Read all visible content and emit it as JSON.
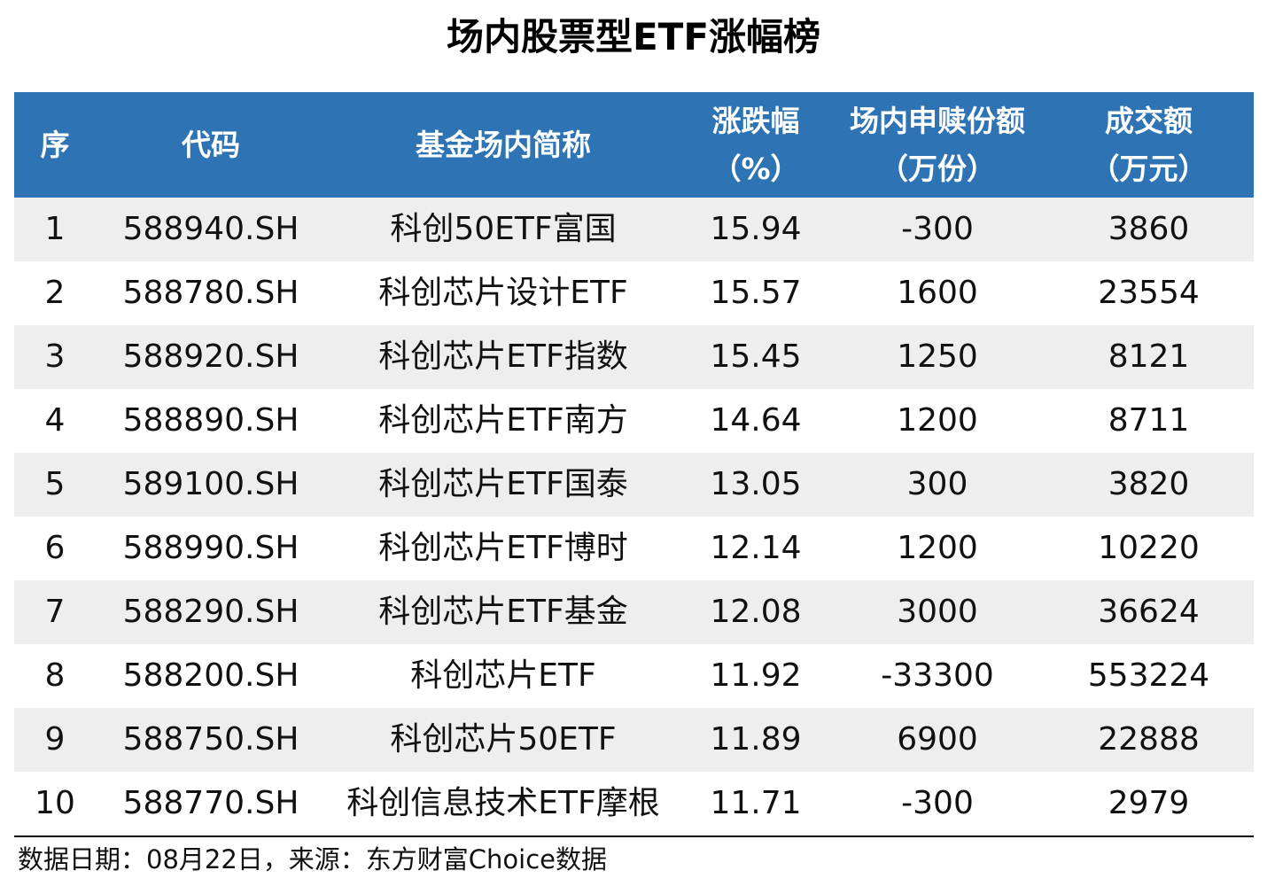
{
  "title": "场内股票型ETF涨幅榜",
  "columns": {
    "rank": [
      "序"
    ],
    "code": [
      "代码"
    ],
    "name": [
      "基金场内简称"
    ],
    "change": [
      "涨跌幅",
      "（%）"
    ],
    "shares": [
      "场内申赎份额",
      "（万份）"
    ],
    "turnover": [
      "成交额",
      "（万元）"
    ]
  },
  "colors": {
    "header_bg": "#2e74b5",
    "header_text": "#ffffff",
    "shade_row": "#eeeeee"
  },
  "chart_data": {
    "type": "table",
    "title": "场内股票型ETF涨幅榜",
    "headers": [
      "序",
      "代码",
      "基金场内简称",
      "涨跌幅（%）",
      "场内申赎份额（万份）",
      "成交额（万元）"
    ],
    "rows": [
      [
        "1",
        "588940.SH",
        "科创50ETF富国",
        "15.94",
        "-300",
        "3860"
      ],
      [
        "2",
        "588780.SH",
        "科创芯片设计ETF",
        "15.57",
        "1600",
        "23554"
      ],
      [
        "3",
        "588920.SH",
        "科创芯片ETF指数",
        "15.45",
        "1250",
        "8121"
      ],
      [
        "4",
        "588890.SH",
        "科创芯片ETF南方",
        "14.64",
        "1200",
        "8711"
      ],
      [
        "5",
        "589100.SH",
        "科创芯片ETF国泰",
        "13.05",
        "300",
        "3820"
      ],
      [
        "6",
        "588990.SH",
        "科创芯片ETF博时",
        "12.14",
        "1200",
        "10220"
      ],
      [
        "7",
        "588290.SH",
        "科创芯片ETF基金",
        "12.08",
        "3000",
        "36624"
      ],
      [
        "8",
        "588200.SH",
        "科创芯片ETF",
        "11.92",
        "-33300",
        "553224"
      ],
      [
        "9",
        "588750.SH",
        "科创芯片50ETF",
        "11.89",
        "6900",
        "22888"
      ],
      [
        "10",
        "588770.SH",
        "科创信息技术ETF摩根",
        "11.71",
        "-300",
        "2979"
      ]
    ]
  },
  "footer": "数据日期：08月22日，来源：东方财富Choice数据"
}
